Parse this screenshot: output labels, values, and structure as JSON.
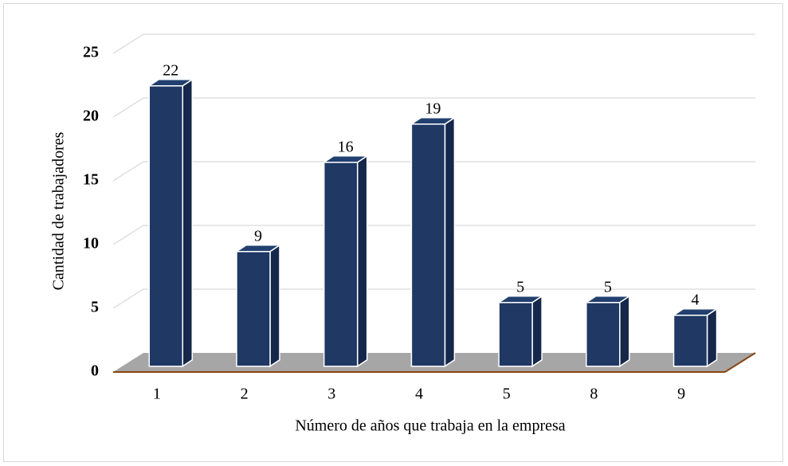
{
  "chart_data": {
    "type": "bar3d",
    "x_label": "Número de años que trabaja en la empresa",
    "y_label": "Cantidad de trabajadores",
    "categories": [
      "1",
      "2",
      "3",
      "4",
      "5",
      "8",
      "9"
    ],
    "values": [
      22,
      9,
      16,
      19,
      5,
      5,
      4
    ],
    "color": "#1f3864",
    "ylim": [
      0,
      25
    ],
    "yticks": [
      0,
      5,
      10,
      15,
      20,
      25
    ],
    "grid": true
  }
}
